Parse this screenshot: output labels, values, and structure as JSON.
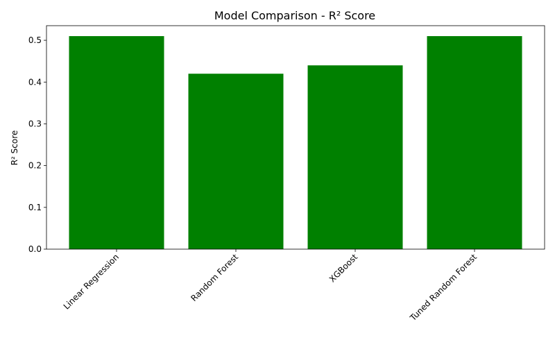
{
  "chart_data": {
    "type": "bar",
    "title": "Model Comparison - R² Score",
    "xlabel": "",
    "ylabel": "R² Score",
    "categories": [
      "Linear Regression",
      "Random Forest",
      "XGBoost",
      "Tuned Random Forest"
    ],
    "values": [
      0.51,
      0.42,
      0.44,
      0.51
    ],
    "ylim": [
      0,
      0.535
    ],
    "yticks": [
      0.0,
      0.1,
      0.2,
      0.3,
      0.4,
      0.5
    ],
    "ytick_labels": [
      "0.0",
      "0.1",
      "0.2",
      "0.3",
      "0.4",
      "0.5"
    ],
    "bar_color": "#008000",
    "grid": false,
    "legend": "none"
  }
}
